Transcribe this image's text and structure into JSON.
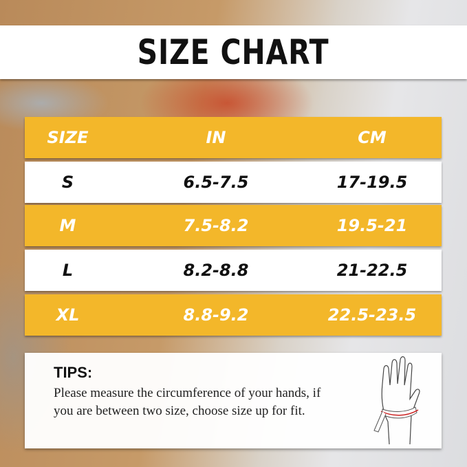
{
  "title": "SIZE CHART",
  "table": {
    "headers": [
      "SIZE",
      "IN",
      "CM"
    ],
    "rows": [
      [
        "S",
        "6.5-7.5",
        "17-19.5"
      ],
      [
        "M",
        "7.5-8.2",
        "19.5-21"
      ],
      [
        "L",
        "8.2-8.8",
        "21-22.5"
      ],
      [
        "XL",
        "8.8-9.2",
        "22.5-23.5"
      ]
    ]
  },
  "tips": {
    "heading": "TIPS:",
    "text": "Please measure the circumference of your hands, if you are between two size, choose size up for fit.",
    "icon": "hand-measuring-tape-icon"
  },
  "colors": {
    "accent": "#f3b72a",
    "row_alt": "#ffffff",
    "text": "#111111"
  }
}
